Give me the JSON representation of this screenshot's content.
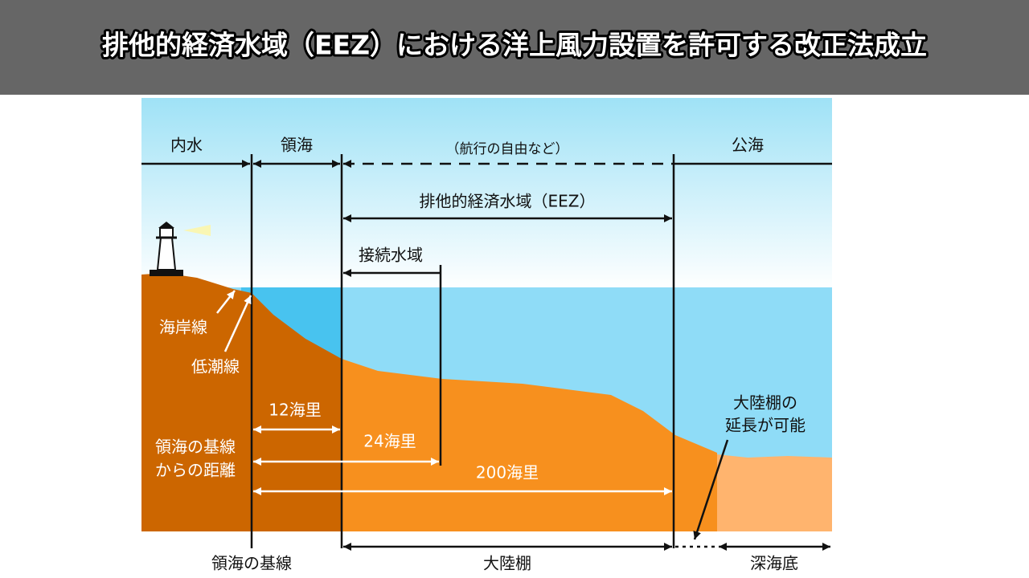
{
  "header": {
    "title": "排他的経済水域（EEZ）における洋上風力設置を許可する改正法成立"
  },
  "zones": {
    "internal": "内水",
    "territorial": "領海",
    "freedom": "（航行の自由など）",
    "high_seas": "公海",
    "eez": "排他的経済水域（EEZ）",
    "contiguous": "接続水域"
  },
  "coast": {
    "coastline": "海岸線",
    "low_tide": "低潮線"
  },
  "distances": {
    "d12": "12海里",
    "d24": "24海里",
    "d200": "200海里",
    "baseline_label": [
      "領海の基線",
      "からの距離"
    ]
  },
  "extension": [
    "大陸棚の",
    "延長が可能"
  ],
  "bottom": {
    "baseline": "領海の基線",
    "shelf": "大陸棚",
    "deep": "深海底"
  }
}
